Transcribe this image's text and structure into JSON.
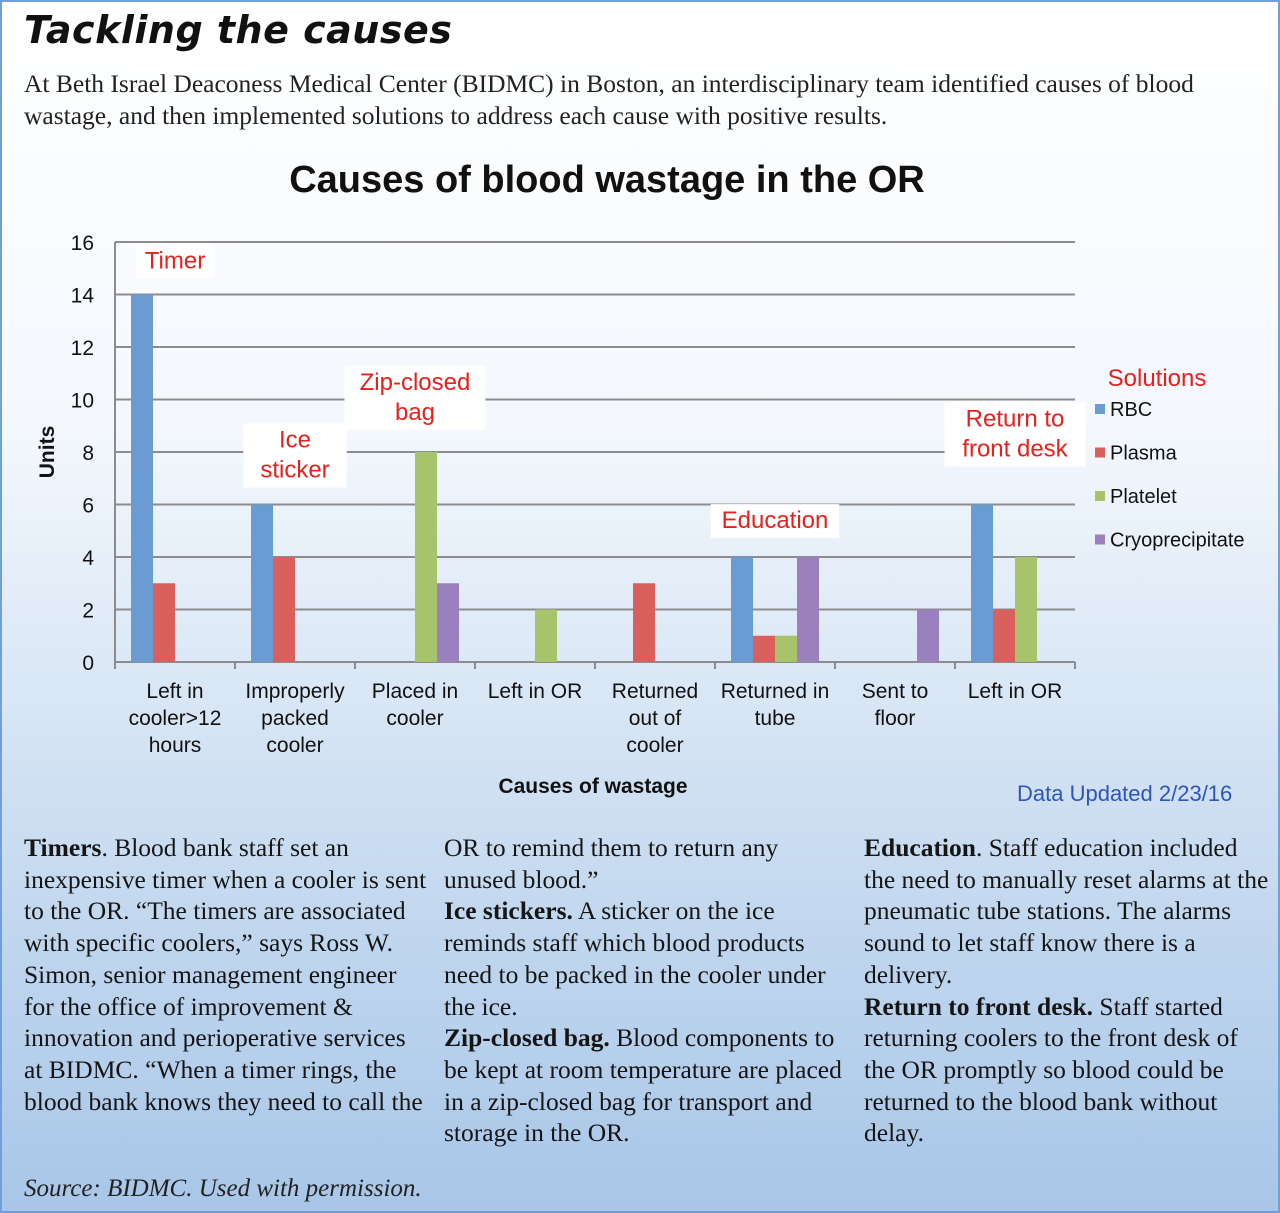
{
  "headline": "Tackling the causes",
  "intro": "At Beth Israel Deaconess Medical Center (BIDMC) in Boston, an interdisciplinary team identified causes of blood wastage, and then implemented solutions to address each cause with positive results.",
  "data_updated": "Data Updated 2/23/16",
  "chart_data": {
    "type": "bar",
    "title": "Causes of blood wastage in the OR",
    "xlabel": "Causes of wastage",
    "ylabel": "Units",
    "ylim": [
      0,
      16
    ],
    "yticks": [
      0,
      2,
      4,
      6,
      8,
      10,
      12,
      14,
      16
    ],
    "grid": true,
    "legend_title": "Solutions",
    "legend_position": "right",
    "categories": [
      [
        "Left in",
        "cooler>12",
        "hours"
      ],
      [
        "Improperly",
        "packed",
        "cooler"
      ],
      [
        "Placed in",
        "cooler"
      ],
      [
        "Left in OR"
      ],
      [
        "Returned",
        "out of",
        "cooler"
      ],
      [
        "Returned in",
        "tube"
      ],
      [
        "Sent to",
        "floor"
      ],
      [
        "Left in OR"
      ]
    ],
    "series": [
      {
        "name": "RBC",
        "color": "#6a9bd3",
        "values": [
          14,
          6,
          0,
          0,
          0,
          4,
          0,
          6
        ]
      },
      {
        "name": "Plasma",
        "color": "#d9605c",
        "values": [
          3,
          4,
          0,
          0,
          3,
          1,
          0,
          2
        ]
      },
      {
        "name": "Platelet",
        "color": "#a8c46a",
        "values": [
          0,
          0,
          8,
          2,
          0,
          1,
          0,
          4
        ]
      },
      {
        "name": "Cryoprecipitate",
        "color": "#9a80bd",
        "values": [
          0,
          0,
          3,
          0,
          0,
          4,
          2,
          0
        ]
      }
    ],
    "annotations": [
      {
        "lines": [
          "Timer"
        ],
        "category": 0,
        "y": 15
      },
      {
        "lines": [
          "Ice",
          "sticker"
        ],
        "category": 1,
        "y": 7.6
      },
      {
        "lines": [
          "Zip-closed",
          "bag"
        ],
        "category": 2,
        "y": 9.8
      },
      {
        "lines": [
          "Education"
        ],
        "category": 5,
        "y": 5.1
      },
      {
        "lines": [
          "Return to",
          "front desk"
        ],
        "category": 7,
        "y": 8.4
      }
    ],
    "annotation_color": "#e8201c"
  },
  "columns": [
    [
      {
        "bold": "Timers",
        "text": ". Blood bank staff set an inexpensive timer when a cooler is sent to the OR. “The timers are associated with specific coolers,” says Ross W. Simon, senior management engineer for the office of improvement & innovation and perioperative services at BIDMC. “When a timer rings, the blood bank knows they need to call the"
      }
    ],
    [
      {
        "bold": "",
        "text": "OR to remind them to return any unused blood.”"
      },
      {
        "bold": "Ice stickers.",
        "text": " A sticker on the ice reminds staff which blood products need to be packed in the cooler under the ice."
      },
      {
        "bold": "Zip-closed bag.",
        "text": " Blood components to be kept at room temperature are placed in a zip-closed bag for transport and storage in the OR."
      }
    ],
    [
      {
        "bold": "Education",
        "text": ". Staff education included the need to manually reset alarms at the pneumatic tube stations. The alarms sound to let staff know there is a delivery."
      },
      {
        "bold": "Return to front desk.",
        "text": " Staff started returning coolers to the front desk of the OR promptly so blood could be returned to the blood bank without delay."
      }
    ]
  ],
  "source": "Source: BIDMC. Used with permission."
}
